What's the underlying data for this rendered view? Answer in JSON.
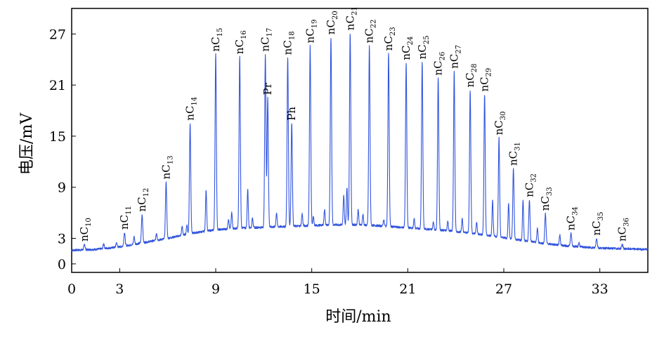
{
  "chart_data": {
    "type": "line",
    "title": "",
    "xlabel": "时间/min",
    "ylabel": "电压/mV",
    "xlim": [
      0,
      36
    ],
    "ylim": [
      -1,
      30
    ],
    "x_ticks": [
      "0",
      "3",
      "9",
      "15",
      "21",
      "27",
      "33"
    ],
    "x_tick_values": [
      0,
      3,
      9,
      15,
      21,
      27,
      33
    ],
    "y_ticks": [
      "0",
      "3",
      "9",
      "15",
      "21",
      "27"
    ],
    "y_tick_values": [
      0,
      3,
      9,
      15,
      21,
      27
    ],
    "line_color": "#3355dd",
    "baseline": [
      [
        0,
        1.6
      ],
      [
        1.5,
        1.7
      ],
      [
        3,
        2.0
      ],
      [
        4.5,
        2.5
      ],
      [
        6,
        3.0
      ],
      [
        7.5,
        3.6
      ],
      [
        9,
        4.0
      ],
      [
        10.5,
        4.2
      ],
      [
        12,
        4.3
      ],
      [
        13.5,
        4.4
      ],
      [
        15,
        4.5
      ],
      [
        16.5,
        4.6
      ],
      [
        17.5,
        4.6
      ],
      [
        19,
        4.5
      ],
      [
        20.5,
        4.3
      ],
      [
        22,
        4.1
      ],
      [
        23.5,
        3.9
      ],
      [
        25,
        3.6
      ],
      [
        26.5,
        3.2
      ],
      [
        28,
        2.8
      ],
      [
        29.5,
        2.4
      ],
      [
        31,
        2.1
      ],
      [
        32.5,
        1.9
      ],
      [
        34,
        1.8
      ],
      [
        36,
        1.7
      ]
    ],
    "major_peaks": [
      {
        "label": "nC",
        "sub": "10",
        "x": 0.8,
        "y": 2.3
      },
      {
        "label": "nC",
        "sub": "11",
        "x": 3.3,
        "y": 3.7
      },
      {
        "label": "nC",
        "sub": "12",
        "x": 4.4,
        "y": 5.8
      },
      {
        "label": "nC",
        "sub": "13",
        "x": 5.9,
        "y": 9.6
      },
      {
        "label": "nC",
        "sub": "14",
        "x": 7.4,
        "y": 16.5
      },
      {
        "label": "nC",
        "sub": "15",
        "x": 9.0,
        "y": 24.6
      },
      {
        "label": "nC",
        "sub": "16",
        "x": 10.5,
        "y": 24.3
      },
      {
        "label": "nC",
        "sub": "17",
        "x": 12.1,
        "y": 24.6
      },
      {
        "label": "Pr",
        "sub": "",
        "x": 12.25,
        "y": 19.5
      },
      {
        "label": "nC",
        "sub": "18",
        "x": 13.5,
        "y": 24.2
      },
      {
        "label": "Ph",
        "sub": "",
        "x": 13.75,
        "y": 16.5
      },
      {
        "label": "nC",
        "sub": "19",
        "x": 14.9,
        "y": 25.6
      },
      {
        "label": "nC",
        "sub": "20",
        "x": 16.2,
        "y": 26.6
      },
      {
        "label": "nC",
        "sub": "21",
        "x": 17.4,
        "y": 27.1
      },
      {
        "label": "nC",
        "sub": "22",
        "x": 18.6,
        "y": 25.6
      },
      {
        "label": "nC",
        "sub": "23",
        "x": 19.8,
        "y": 24.7
      },
      {
        "label": "nC",
        "sub": "24",
        "x": 20.9,
        "y": 23.6
      },
      {
        "label": "nC",
        "sub": "25",
        "x": 21.9,
        "y": 23.7
      },
      {
        "label": "nC",
        "sub": "26",
        "x": 22.9,
        "y": 21.8
      },
      {
        "label": "nC",
        "sub": "27",
        "x": 23.9,
        "y": 22.6
      },
      {
        "label": "nC",
        "sub": "28",
        "x": 24.9,
        "y": 20.4
      },
      {
        "label": "nC",
        "sub": "29",
        "x": 25.8,
        "y": 19.9
      },
      {
        "label": "nC",
        "sub": "30",
        "x": 26.7,
        "y": 14.8
      },
      {
        "label": "nC",
        "sub": "31",
        "x": 27.6,
        "y": 11.2
      },
      {
        "label": "nC",
        "sub": "32",
        "x": 28.6,
        "y": 7.5
      },
      {
        "label": "nC",
        "sub": "33",
        "x": 29.6,
        "y": 5.9
      },
      {
        "label": "nC",
        "sub": "34",
        "x": 31.2,
        "y": 3.6
      },
      {
        "label": "nC",
        "sub": "35",
        "x": 32.8,
        "y": 3.0
      },
      {
        "label": "nC",
        "sub": "36",
        "x": 34.4,
        "y": 2.3
      }
    ],
    "minor_peaks": [
      {
        "x": 2.0,
        "y": 2.4
      },
      {
        "x": 2.8,
        "y": 2.5
      },
      {
        "x": 3.9,
        "y": 3.2
      },
      {
        "x": 5.3,
        "y": 3.6
      },
      {
        "x": 6.9,
        "y": 4.4
      },
      {
        "x": 7.2,
        "y": 4.6
      },
      {
        "x": 8.4,
        "y": 8.7
      },
      {
        "x": 9.8,
        "y": 5.3
      },
      {
        "x": 10.0,
        "y": 6.0
      },
      {
        "x": 11.0,
        "y": 8.8
      },
      {
        "x": 11.3,
        "y": 5.4
      },
      {
        "x": 12.8,
        "y": 6.0
      },
      {
        "x": 14.4,
        "y": 5.9
      },
      {
        "x": 15.1,
        "y": 5.5
      },
      {
        "x": 15.8,
        "y": 6.4
      },
      {
        "x": 17.0,
        "y": 8.0
      },
      {
        "x": 17.2,
        "y": 9.0
      },
      {
        "x": 17.9,
        "y": 6.4
      },
      {
        "x": 18.2,
        "y": 5.8
      },
      {
        "x": 19.5,
        "y": 5.2
      },
      {
        "x": 21.4,
        "y": 5.3
      },
      {
        "x": 22.6,
        "y": 4.9
      },
      {
        "x": 23.5,
        "y": 5.0
      },
      {
        "x": 24.4,
        "y": 5.3
      },
      {
        "x": 25.3,
        "y": 4.9
      },
      {
        "x": 26.3,
        "y": 7.4
      },
      {
        "x": 27.3,
        "y": 7.2
      },
      {
        "x": 28.2,
        "y": 7.5
      },
      {
        "x": 29.1,
        "y": 4.2
      },
      {
        "x": 30.5,
        "y": 3.4
      },
      {
        "x": 31.7,
        "y": 2.5
      }
    ]
  }
}
